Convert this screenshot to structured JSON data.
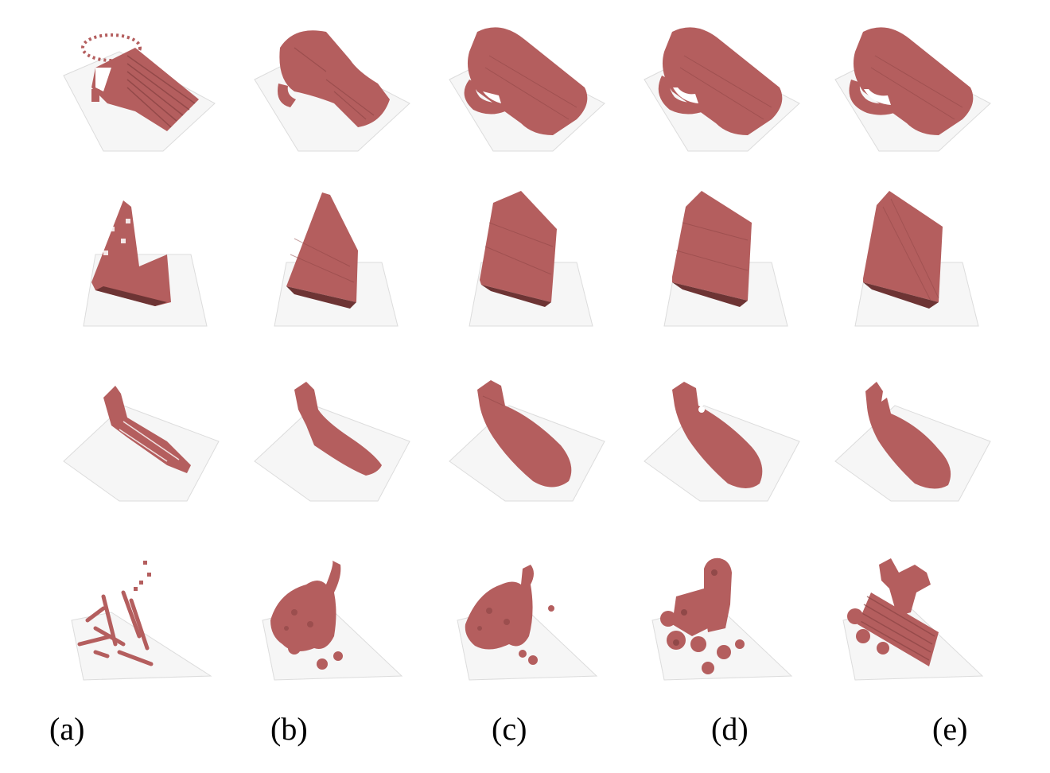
{
  "figure": {
    "columns": [
      {
        "id": "a",
        "label": "(a)"
      },
      {
        "id": "b",
        "label": "(b)"
      },
      {
        "id": "c",
        "label": "(c)"
      },
      {
        "id": "d",
        "label": "(d)"
      },
      {
        "id": "e",
        "label": "(e)"
      }
    ],
    "rows": [
      {
        "id": "mug"
      },
      {
        "id": "block"
      },
      {
        "id": "bottle"
      },
      {
        "id": "irregular"
      }
    ],
    "colors": {
      "voxel_fill": "#b45e5e",
      "voxel_shade": "#8c4444",
      "voxel_dark": "#6d3434",
      "ground_grid": "#d9d9d9"
    }
  }
}
